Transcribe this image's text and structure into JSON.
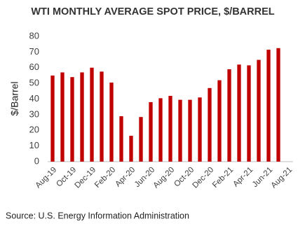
{
  "chart_data": {
    "type": "bar",
    "title": "WTI MONTHLY AVERAGE SPOT PRICE, $/BARREL",
    "y_label": "$/Barrel",
    "source": "Source: U.S. Energy Information Administration",
    "categories": [
      "Aug-19",
      null,
      "Oct-19",
      null,
      "Dec-19",
      null,
      "Feb-20",
      null,
      "Apr-20",
      null,
      "Jun-20",
      null,
      "Aug-20",
      null,
      "Oct-20",
      null,
      "Dec-20",
      null,
      "Feb-21",
      null,
      "Apr-21",
      null,
      "Jun-21",
      null,
      "Aug-21"
    ],
    "values": [
      55,
      57,
      54,
      57,
      60,
      57.5,
      50.5,
      29,
      16.5,
      28.5,
      38,
      40.5,
      42,
      39.5,
      39.5,
      41,
      47,
      52,
      59,
      62,
      61.5,
      65,
      71.5,
      72.5,
      null
    ],
    "color": "#c00000",
    "ylim": [
      0,
      80
    ],
    "yticks": [
      0,
      10,
      20,
      30,
      40,
      50,
      60,
      70,
      80
    ],
    "grid": false
  }
}
